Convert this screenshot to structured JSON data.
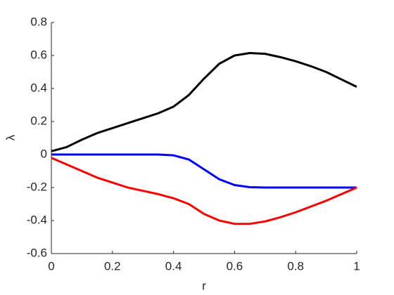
{
  "chart_data": {
    "type": "line",
    "x_label": "r",
    "y_label": "λ",
    "x": [
      0,
      0.05,
      0.1,
      0.15,
      0.2,
      0.25,
      0.3,
      0.35,
      0.4,
      0.45,
      0.5,
      0.55,
      0.6,
      0.65,
      0.7,
      0.75,
      0.8,
      0.85,
      0.9,
      0.95,
      1
    ],
    "series": [
      {
        "color": "#000000",
        "values": [
          0.02,
          0.045,
          0.09,
          0.13,
          0.16,
          0.19,
          0.22,
          0.25,
          0.29,
          0.36,
          0.46,
          0.55,
          0.6,
          0.615,
          0.61,
          0.59,
          0.565,
          0.535,
          0.5,
          0.455,
          0.41
        ]
      },
      {
        "color": "#0000ff",
        "values": [
          0,
          0,
          0,
          0,
          0,
          0,
          0,
          0,
          -0.005,
          -0.03,
          -0.09,
          -0.15,
          -0.185,
          -0.198,
          -0.2,
          -0.2,
          -0.2,
          -0.2,
          -0.2,
          -0.2,
          -0.2
        ]
      },
      {
        "color": "#ff0000",
        "values": [
          -0.02,
          -0.06,
          -0.1,
          -0.14,
          -0.17,
          -0.2,
          -0.22,
          -0.24,
          -0.265,
          -0.3,
          -0.36,
          -0.4,
          -0.42,
          -0.42,
          -0.405,
          -0.38,
          -0.35,
          -0.315,
          -0.28,
          -0.24,
          -0.2
        ]
      }
    ],
    "xlim": [
      0,
      1
    ],
    "xticks": [
      0,
      0.2,
      0.4,
      0.6,
      0.8,
      1
    ],
    "ylim": [
      -0.6,
      0.8
    ],
    "yticks": [
      -0.6,
      -0.4,
      -0.2,
      0,
      0.2,
      0.4,
      0.6,
      0.8
    ],
    "grid": false
  }
}
